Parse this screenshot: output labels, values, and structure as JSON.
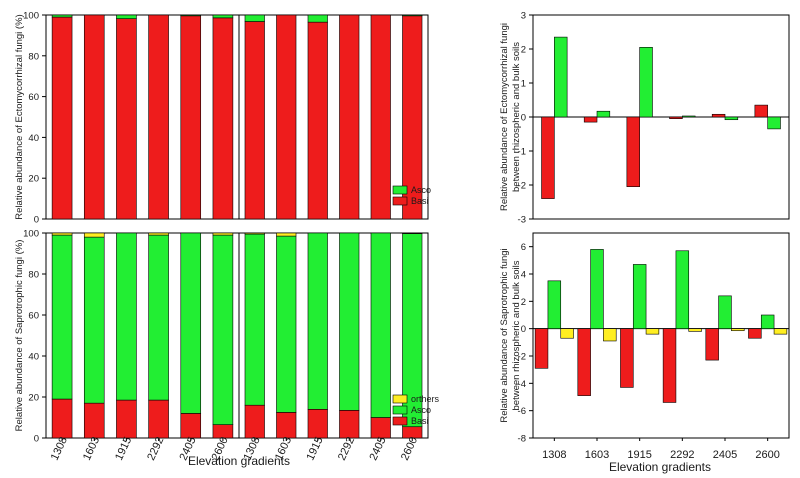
{
  "colors": {
    "basi": "#ee1c1c",
    "asco": "#22ee33",
    "others": "#ffee22",
    "axis": "#000000"
  },
  "x_title": "Elevation gradients",
  "chart_data": [
    {
      "id": "ecto-rhizo",
      "type": "bar",
      "stacked": true,
      "categories": [
        "1308",
        "1603",
        "1915",
        "2292",
        "2405",
        "2600"
      ],
      "series": [
        {
          "name": "Basi",
          "values": [
            99,
            100,
            98.2,
            100,
            99.6,
            98.6
          ]
        },
        {
          "name": "Asco",
          "values": [
            1,
            0,
            1.8,
            0,
            0.4,
            1.4
          ]
        }
      ],
      "ylabel": "Relative abundance of Ectomycorrhizal fungi (%)",
      "ylim": [
        0,
        100
      ],
      "yticks": [
        0,
        20,
        40,
        60,
        80,
        100
      ],
      "show_x_ticklabels": false,
      "legend": []
    },
    {
      "id": "ecto-bulk",
      "type": "bar",
      "stacked": true,
      "categories": [
        "1308",
        "1603",
        "1915",
        "2292",
        "2405",
        "2600"
      ],
      "series": [
        {
          "name": "Basi",
          "values": [
            96.8,
            100,
            96.5,
            100,
            100,
            99.6
          ]
        },
        {
          "name": "Asco",
          "values": [
            3.2,
            0,
            3.5,
            0,
            0,
            0.4
          ]
        }
      ],
      "ylim": [
        0,
        100
      ],
      "show_y_ticklabels": false,
      "show_x_ticklabels": false,
      "legend": [
        {
          "name": "Asco",
          "color": "#22ee33"
        },
        {
          "name": "Basi",
          "color": "#ee1c1c"
        }
      ]
    },
    {
      "id": "sapro-rhizo",
      "type": "bar",
      "stacked": true,
      "categories": [
        "1308",
        "1603",
        "1915",
        "2292",
        "2405",
        "2600"
      ],
      "series": [
        {
          "name": "Basi",
          "values": [
            19,
            17,
            18.5,
            18.5,
            12,
            6.5
          ]
        },
        {
          "name": "Asco",
          "values": [
            80,
            81,
            81.5,
            80.5,
            88,
            92.5
          ]
        },
        {
          "name": "orthers",
          "values": [
            1,
            2,
            0,
            1,
            0,
            1
          ]
        }
      ],
      "ylabel": "Relative abundance of Saprotrophic fungi (%)",
      "ylim": [
        0,
        100
      ],
      "yticks": [
        0,
        20,
        40,
        60,
        80,
        100
      ],
      "show_x_ticklabels": true,
      "legend": []
    },
    {
      "id": "sapro-bulk",
      "type": "bar",
      "stacked": true,
      "categories": [
        "1308",
        "1603",
        "1915",
        "2292",
        "2405",
        "2600"
      ],
      "series": [
        {
          "name": "Basi",
          "values": [
            16,
            12.5,
            14,
            13.5,
            10,
            5.5
          ]
        },
        {
          "name": "Asco",
          "values": [
            83.5,
            86,
            86,
            86.5,
            90,
            94.2
          ]
        },
        {
          "name": "orthers",
          "values": [
            0.5,
            1.5,
            0,
            0,
            0,
            0.3
          ]
        }
      ],
      "ylim": [
        0,
        100
      ],
      "show_y_ticklabels": false,
      "show_x_ticklabels": true,
      "legend": [
        {
          "name": "orthers",
          "color": "#ffee22"
        },
        {
          "name": "Asco",
          "color": "#22ee33"
        },
        {
          "name": "Basi",
          "color": "#ee1c1c"
        }
      ]
    },
    {
      "id": "ecto-diff",
      "type": "bar",
      "categories": [
        "1308",
        "1603",
        "1915",
        "2292",
        "2405",
        "2600"
      ],
      "series": [
        {
          "name": "Basi",
          "values": [
            -2.4,
            -0.15,
            -2.05,
            -0.05,
            0.08,
            0.35
          ]
        },
        {
          "name": "Asco",
          "values": [
            2.35,
            0.17,
            2.05,
            0.03,
            -0.08,
            -0.35
          ]
        }
      ],
      "ylabel": "Relative abundance of Ectomycorrhizal fungi between rhizospheric and bulk soils",
      "ylim": [
        -3,
        3
      ],
      "yticks": [
        -3,
        -2,
        -1,
        0,
        1,
        2,
        3
      ],
      "show_x_ticklabels": false,
      "legend": []
    },
    {
      "id": "sapro-diff",
      "type": "bar",
      "categories": [
        "1308",
        "1603",
        "1915",
        "2292",
        "2405",
        "2600"
      ],
      "series": [
        {
          "name": "Basi",
          "values": [
            -2.9,
            -4.9,
            -4.3,
            -5.4,
            -2.3,
            -0.7
          ]
        },
        {
          "name": "Asco",
          "values": [
            3.5,
            5.8,
            4.7,
            5.7,
            2.4,
            1.0
          ]
        },
        {
          "name": "orthers",
          "values": [
            -0.7,
            -0.9,
            -0.4,
            -0.2,
            -0.15,
            -0.4
          ]
        }
      ],
      "ylabel": "Relative abundance of Saprotrophic fungi between rhizospheric and bulk soils",
      "ylim": [
        -8,
        7
      ],
      "yticks": [
        -8,
        -6,
        -4,
        -2,
        0,
        2,
        4,
        6
      ],
      "show_x_ticklabels": true,
      "legend": []
    }
  ]
}
